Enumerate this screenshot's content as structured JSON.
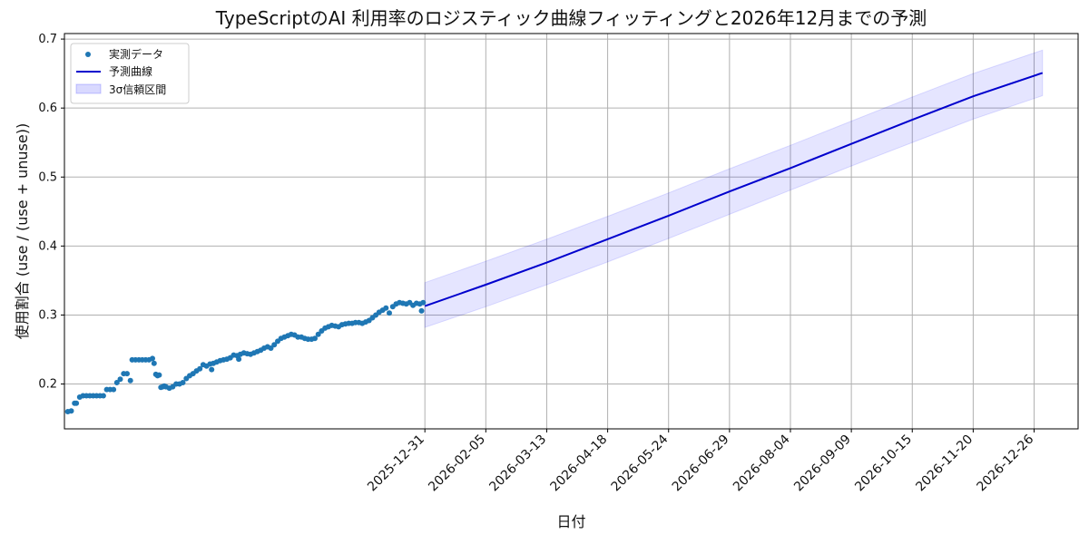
{
  "chart_data": {
    "type": "line",
    "title": "TypeScriptのAI 利用率のロジスティック曲線フィッティングと2026年12月までの予測",
    "xlabel": "日付",
    "ylabel": "使用割合 (use / (use + unuse))",
    "ylim": [
      0.135,
      0.708
    ],
    "grid": true,
    "legend_position": "top-left",
    "x_ticks": [
      "2025-12-31",
      "2026-02-05",
      "2026-03-13",
      "2026-04-18",
      "2026-05-24",
      "2026-06-29",
      "2026-08-04",
      "2026-09-09",
      "2026-10-15",
      "2026-11-20",
      "2026-12-26"
    ],
    "y_ticks": [
      0.2,
      0.3,
      0.4,
      0.5,
      0.6,
      0.7
    ],
    "x_range": [
      "2025-06-01",
      "2027-01-21"
    ],
    "series": [
      {
        "name": "実測データ",
        "kind": "scatter",
        "color": "#1f77b4",
        "points": [
          [
            "2025-06-03",
            0.16
          ],
          [
            "2025-06-05",
            0.161
          ],
          [
            "2025-06-07",
            0.172
          ],
          [
            "2025-06-08",
            0.172
          ],
          [
            "2025-06-10",
            0.181
          ],
          [
            "2025-06-12",
            0.183
          ],
          [
            "2025-06-14",
            0.183
          ],
          [
            "2025-06-16",
            0.183
          ],
          [
            "2025-06-18",
            0.183
          ],
          [
            "2025-06-20",
            0.183
          ],
          [
            "2025-06-22",
            0.183
          ],
          [
            "2025-06-24",
            0.183
          ],
          [
            "2025-06-26",
            0.192
          ],
          [
            "2025-06-28",
            0.192
          ],
          [
            "2025-06-30",
            0.192
          ],
          [
            "2025-07-02",
            0.202
          ],
          [
            "2025-07-04",
            0.207
          ],
          [
            "2025-07-06",
            0.215
          ],
          [
            "2025-07-08",
            0.215
          ],
          [
            "2025-07-10",
            0.205
          ],
          [
            "2025-07-11",
            0.235
          ],
          [
            "2025-07-13",
            0.235
          ],
          [
            "2025-07-15",
            0.235
          ],
          [
            "2025-07-17",
            0.235
          ],
          [
            "2025-07-19",
            0.235
          ],
          [
            "2025-07-21",
            0.235
          ],
          [
            "2025-07-23",
            0.237
          ],
          [
            "2025-07-24",
            0.23
          ],
          [
            "2025-07-25",
            0.214
          ],
          [
            "2025-07-26",
            0.212
          ],
          [
            "2025-07-27",
            0.213
          ],
          [
            "2025-07-28",
            0.195
          ],
          [
            "2025-07-29",
            0.196
          ],
          [
            "2025-07-30",
            0.197
          ],
          [
            "2025-07-31",
            0.196
          ],
          [
            "2025-08-02",
            0.194
          ],
          [
            "2025-08-04",
            0.196
          ],
          [
            "2025-08-06",
            0.2
          ],
          [
            "2025-08-08",
            0.2
          ],
          [
            "2025-08-10",
            0.202
          ],
          [
            "2025-08-12",
            0.208
          ],
          [
            "2025-08-14",
            0.212
          ],
          [
            "2025-08-16",
            0.215
          ],
          [
            "2025-08-18",
            0.219
          ],
          [
            "2025-08-20",
            0.222
          ],
          [
            "2025-08-22",
            0.228
          ],
          [
            "2025-08-24",
            0.226
          ],
          [
            "2025-08-26",
            0.229
          ],
          [
            "2025-08-27",
            0.221
          ],
          [
            "2025-08-28",
            0.23
          ],
          [
            "2025-08-30",
            0.232
          ],
          [
            "2025-09-01",
            0.234
          ],
          [
            "2025-09-03",
            0.235
          ],
          [
            "2025-09-05",
            0.236
          ],
          [
            "2025-09-07",
            0.238
          ],
          [
            "2025-09-09",
            0.242
          ],
          [
            "2025-09-11",
            0.241
          ],
          [
            "2025-09-12",
            0.236
          ],
          [
            "2025-09-13",
            0.243
          ],
          [
            "2025-09-15",
            0.245
          ],
          [
            "2025-09-17",
            0.244
          ],
          [
            "2025-09-19",
            0.243
          ],
          [
            "2025-09-21",
            0.245
          ],
          [
            "2025-09-23",
            0.247
          ],
          [
            "2025-09-25",
            0.249
          ],
          [
            "2025-09-27",
            0.252
          ],
          [
            "2025-09-29",
            0.254
          ],
          [
            "2025-10-01",
            0.252
          ],
          [
            "2025-10-03",
            0.257
          ],
          [
            "2025-10-05",
            0.262
          ],
          [
            "2025-10-07",
            0.266
          ],
          [
            "2025-10-09",
            0.268
          ],
          [
            "2025-10-11",
            0.27
          ],
          [
            "2025-10-13",
            0.272
          ],
          [
            "2025-10-15",
            0.271
          ],
          [
            "2025-10-17",
            0.268
          ],
          [
            "2025-10-19",
            0.268
          ],
          [
            "2025-10-21",
            0.266
          ],
          [
            "2025-10-23",
            0.265
          ],
          [
            "2025-10-25",
            0.265
          ],
          [
            "2025-10-27",
            0.266
          ],
          [
            "2025-10-29",
            0.272
          ],
          [
            "2025-10-31",
            0.277
          ],
          [
            "2025-11-02",
            0.281
          ],
          [
            "2025-11-04",
            0.283
          ],
          [
            "2025-11-06",
            0.285
          ],
          [
            "2025-11-08",
            0.284
          ],
          [
            "2025-11-10",
            0.283
          ],
          [
            "2025-11-12",
            0.286
          ],
          [
            "2025-11-14",
            0.287
          ],
          [
            "2025-11-16",
            0.288
          ],
          [
            "2025-11-18",
            0.288
          ],
          [
            "2025-11-20",
            0.289
          ],
          [
            "2025-11-22",
            0.289
          ],
          [
            "2025-11-24",
            0.288
          ],
          [
            "2025-11-26",
            0.29
          ],
          [
            "2025-11-28",
            0.292
          ],
          [
            "2025-11-30",
            0.296
          ],
          [
            "2025-12-02",
            0.3
          ],
          [
            "2025-12-04",
            0.304
          ],
          [
            "2025-12-06",
            0.307
          ],
          [
            "2025-12-08",
            0.31
          ],
          [
            "2025-12-10",
            0.303
          ],
          [
            "2025-12-12",
            0.312
          ],
          [
            "2025-12-14",
            0.316
          ],
          [
            "2025-12-16",
            0.318
          ],
          [
            "2025-12-18",
            0.317
          ],
          [
            "2025-12-20",
            0.316
          ],
          [
            "2025-12-22",
            0.318
          ],
          [
            "2025-12-24",
            0.314
          ],
          [
            "2025-12-26",
            0.317
          ],
          [
            "2025-12-28",
            0.316
          ],
          [
            "2025-12-29",
            0.306
          ],
          [
            "2025-12-30",
            0.318
          ]
        ]
      },
      {
        "name": "予測曲線",
        "kind": "line",
        "color": "#0000cd",
        "points": [
          [
            "2025-12-31",
            0.313
          ],
          [
            "2026-02-05",
            0.344
          ],
          [
            "2026-03-13",
            0.376
          ],
          [
            "2026-04-18",
            0.41
          ],
          [
            "2026-05-24",
            0.444
          ],
          [
            "2026-06-29",
            0.479
          ],
          [
            "2026-08-04",
            0.513
          ],
          [
            "2026-09-09",
            0.548
          ],
          [
            "2026-10-15",
            0.583
          ],
          [
            "2026-11-20",
            0.617
          ],
          [
            "2026-12-31",
            0.651
          ]
        ]
      },
      {
        "name": "3σ信頼区間",
        "kind": "band",
        "color": "#0000ff",
        "opacity": 0.1,
        "points": [
          [
            "2025-12-31",
            0.282,
            0.347
          ],
          [
            "2026-02-05",
            0.312,
            0.378
          ],
          [
            "2026-03-13",
            0.344,
            0.41
          ],
          [
            "2026-04-18",
            0.377,
            0.443
          ],
          [
            "2026-05-24",
            0.411,
            0.477
          ],
          [
            "2026-06-29",
            0.446,
            0.512
          ],
          [
            "2026-08-04",
            0.481,
            0.546
          ],
          [
            "2026-09-09",
            0.516,
            0.581
          ],
          [
            "2026-10-15",
            0.55,
            0.616
          ],
          [
            "2026-11-20",
            0.584,
            0.65
          ],
          [
            "2026-12-31",
            0.618,
            0.684
          ]
        ]
      }
    ]
  }
}
